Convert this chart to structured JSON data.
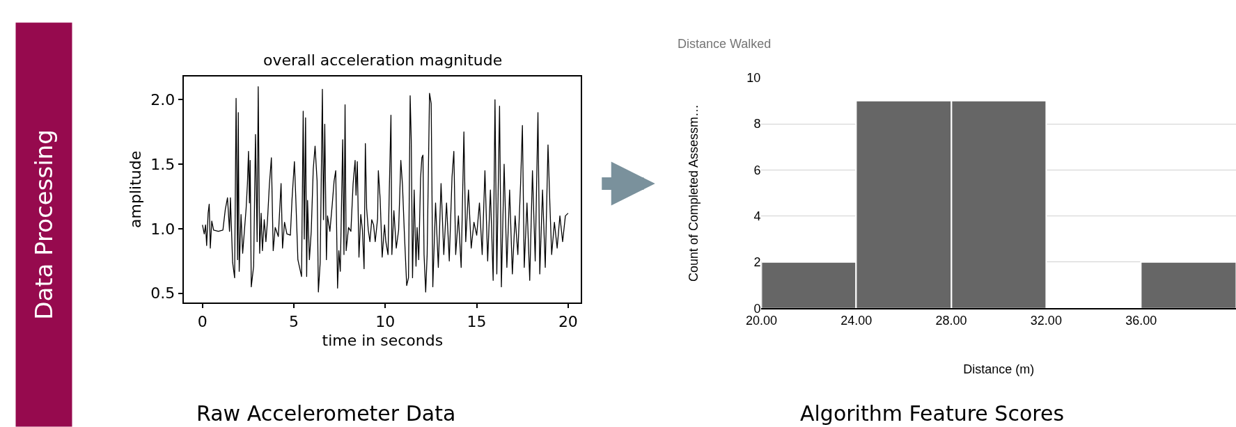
{
  "chart_data": [
    {
      "type": "line",
      "title": "overall acceleration magnitude",
      "xlabel": "time in seconds",
      "ylabel": "amplitude",
      "annotations": [
        "Data Processing",
        "Raw Accelerometer Data"
      ],
      "x": [
        0.0,
        0.1,
        0.17,
        0.23,
        0.31,
        0.37,
        0.43,
        0.51,
        0.61,
        0.87,
        1.12,
        1.25,
        1.37,
        1.48,
        1.53,
        1.65,
        1.76,
        1.84,
        1.92,
        1.96,
        2.01,
        2.11,
        2.2,
        2.39,
        2.46,
        2.52,
        2.57,
        2.61,
        2.67,
        2.8,
        2.9,
        2.99,
        3.05,
        3.13,
        3.21,
        3.28,
        3.38,
        3.47,
        3.56,
        3.66,
        3.77,
        3.87,
        3.98,
        4.15,
        4.3,
        4.38,
        4.49,
        4.62,
        4.81,
        4.9,
        5.03,
        5.1,
        5.22,
        5.42,
        5.51,
        5.57,
        5.64,
        5.7,
        5.75,
        5.85,
        5.95,
        6.06,
        6.16,
        6.27,
        6.34,
        6.44,
        6.56,
        6.62,
        6.69,
        6.78,
        6.84,
        6.97,
        7.1,
        7.2,
        7.29,
        7.39,
        7.46,
        7.54,
        7.67,
        7.74,
        7.8,
        7.86,
        7.99,
        8.12,
        8.24,
        8.35,
        8.4,
        8.47,
        8.56,
        8.66,
        8.75,
        8.84,
        8.91,
        8.98,
        9.07,
        9.16,
        9.26,
        9.36,
        9.45,
        9.58,
        9.62,
        9.72,
        9.83,
        9.96,
        10.03,
        10.15,
        10.22,
        10.31,
        10.36,
        10.47,
        10.6,
        10.73,
        10.85,
        10.94,
        11.04,
        11.17,
        11.27,
        11.36,
        11.42,
        11.49,
        11.58,
        11.68,
        11.74,
        11.83,
        11.93,
        12.0,
        12.06,
        12.12,
        12.21,
        12.29,
        12.42,
        12.51,
        12.6,
        12.75,
        12.9,
        13.05,
        13.2,
        13.35,
        13.5,
        13.65,
        13.75,
        13.85,
        14.0,
        14.15,
        14.3,
        14.4,
        14.55,
        14.7,
        14.85,
        15.0,
        15.15,
        15.3,
        15.45,
        15.6,
        15.75,
        15.9,
        16.0,
        16.1,
        16.25,
        16.35,
        16.5,
        16.65,
        16.8,
        16.95,
        17.1,
        17.25,
        17.4,
        17.5,
        17.6,
        17.75,
        17.9,
        18.05,
        18.2,
        18.35,
        18.45,
        18.6,
        18.75,
        18.9,
        19.0,
        19.1,
        19.25,
        19.4,
        19.55,
        19.7,
        19.85,
        20.0
      ],
      "series": [
        {
          "color": "#000000",
          "values": [
            1.03,
            0.96,
            1.03,
            0.87,
            1.12,
            1.19,
            0.85,
            1.06,
            0.99,
            0.98,
            0.99,
            1.15,
            1.24,
            0.98,
            1.24,
            0.74,
            0.62,
            2.01,
            0.76,
            1.9,
            0.67,
            1.11,
            0.81,
            1.16,
            1.35,
            1.6,
            1.2,
            1.53,
            0.55,
            0.71,
            1.73,
            0.9,
            2.1,
            0.81,
            1.12,
            0.83,
            1.07,
            0.9,
            1.07,
            1.34,
            1.55,
            0.83,
            1.01,
            0.94,
            1.35,
            0.85,
            1.05,
            0.96,
            0.95,
            1.23,
            1.52,
            1.26,
            0.76,
            0.63,
            1.91,
            0.92,
            1.86,
            0.63,
            1.22,
            0.76,
            0.98,
            1.46,
            1.64,
            1.37,
            0.51,
            0.74,
            2.08,
            1.07,
            1.81,
            0.76,
            1.1,
            0.98,
            1.19,
            1.37,
            1.45,
            0.54,
            0.83,
            0.67,
            1.69,
            0.8,
            1.96,
            0.83,
            1.01,
            0.98,
            1.35,
            1.53,
            1.26,
            1.52,
            0.78,
            1.11,
            0.99,
            0.69,
            1.66,
            1.16,
            0.99,
            0.9,
            1.07,
            1.03,
            0.9,
            1.08,
            1.45,
            1.23,
            0.78,
            1.03,
            0.9,
            0.8,
            1.3,
            1.88,
            0.8,
            1.14,
            0.85,
            0.99,
            1.53,
            1.34,
            0.98,
            0.56,
            0.62,
            2.03,
            1.69,
            0.62,
            1.3,
            0.71,
            1.01,
            0.76,
            1.39,
            1.55,
            1.57,
            0.8,
            0.51,
            0.8,
            2.05,
            1.97,
            0.55,
            1.2,
            0.7,
            1.35,
            0.8,
            1.2,
            0.75,
            1.4,
            1.6,
            0.8,
            1.1,
            0.7,
            1.75,
            0.9,
            1.3,
            0.85,
            1.05,
            0.95,
            1.2,
            0.8,
            1.45,
            0.75,
            1.3,
            0.6,
            2.0,
            0.65,
            1.95,
            0.55,
            1.5,
            0.7,
            1.3,
            0.65,
            1.1,
            0.8,
            1.35,
            1.8,
            0.7,
            1.2,
            0.6,
            1.45,
            0.75,
            1.9,
            0.65,
            1.3,
            0.7,
            1.65,
            1.2,
            0.8,
            1.05,
            0.85,
            1.1,
            0.9,
            1.1,
            1.12
          ]
        }
      ],
      "xlim": [
        -1,
        20.7
      ],
      "ylim": [
        0.43,
        2.18
      ],
      "xticks": [
        0,
        5,
        10,
        15,
        20
      ],
      "yticks": [
        {
          "value": 0.5,
          "label": "0.5"
        },
        {
          "value": 1,
          "label": "1.0"
        },
        {
          "value": 1.5,
          "label": "1.5"
        },
        {
          "value": 2,
          "label": "2.0"
        }
      ],
      "line_style": "solid",
      "grid": false
    },
    {
      "type": "histogram",
      "title": "Distance Walked",
      "xlabel": "Distance (m)",
      "ylabel": "Count of Completed Assessm…",
      "annotations": [
        "Algorithm Feature Scores"
      ],
      "bins": [
        20,
        24,
        28,
        32,
        36,
        40
      ],
      "values": [
        2,
        9,
        9,
        0,
        2
      ],
      "color": "#666666",
      "xlim": [
        20,
        40
      ],
      "ylim": [
        0,
        10
      ],
      "xticks": [
        {
          "value": 20,
          "label": "20.00"
        },
        {
          "value": 24,
          "label": "24.00"
        },
        {
          "value": 28,
          "label": "28.00"
        },
        {
          "value": 32,
          "label": "32.00"
        },
        {
          "value": 36,
          "label": "36.00"
        }
      ],
      "yticks": [
        0,
        2,
        4,
        6,
        8,
        10
      ],
      "grid": "y"
    }
  ]
}
